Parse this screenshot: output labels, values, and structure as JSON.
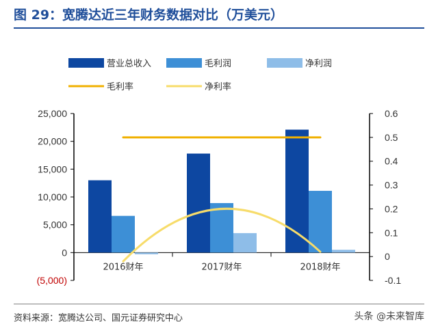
{
  "header": {
    "title": "图 29：宽腾达近三年财务数据对比（万美元）"
  },
  "footer": {
    "source": "资料来源：宽腾达公司、国元证券研究中心",
    "watermark": "头条 @未来智库"
  },
  "chart_data": {
    "type": "bar",
    "categories": [
      "2016财年",
      "2017财年",
      "2018财年"
    ],
    "series": [
      {
        "name": "营业总收入",
        "kind": "bar",
        "axis": "left",
        "color": "#0d47a1",
        "values": [
          13000,
          17800,
          22100
        ]
      },
      {
        "name": "毛利润",
        "kind": "bar",
        "axis": "left",
        "color": "#3d8fd6",
        "values": [
          6600,
          8900,
          11100
        ]
      },
      {
        "name": "净利润",
        "kind": "bar",
        "axis": "left",
        "color": "#8ebde8",
        "values": [
          -300,
          3500,
          500
        ]
      },
      {
        "name": "毛利率",
        "kind": "line",
        "axis": "right",
        "color": "#f0b000",
        "values": [
          0.5,
          0.5,
          0.5
        ]
      },
      {
        "name": "净利率",
        "kind": "line",
        "axis": "right",
        "color": "#f7dc6a",
        "smooth": true,
        "values": [
          -0.02,
          0.2,
          0.02
        ]
      }
    ],
    "y_left": {
      "min": -5000,
      "max": 25000,
      "ticks": [
        "(5,000)",
        "0",
        "5,000",
        "10,000",
        "15,000",
        "20,000",
        "25,000"
      ]
    },
    "y_right": {
      "min": -0.1,
      "max": 0.6,
      "ticks": [
        "-0.1",
        "0",
        "0.1",
        "0.2",
        "0.3",
        "0.4",
        "0.5",
        "0.6"
      ]
    },
    "grid": false,
    "legend": "top"
  }
}
